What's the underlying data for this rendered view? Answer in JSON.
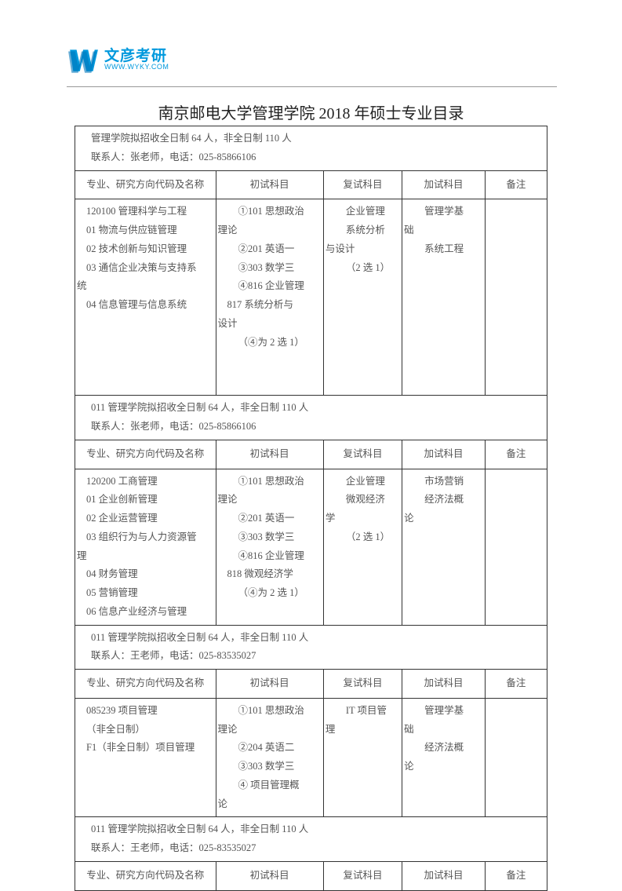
{
  "logo": {
    "cn": "文彦考研",
    "en": "WWW.WYKY.COM",
    "color": "#0099dd"
  },
  "title": "南京邮电大学管理学院 2018 年硕士专业目录",
  "headers": {
    "col1": "专业、研究方向代码及名称",
    "col2": "初试科目",
    "col3": "复试科目",
    "col4": "加试科目",
    "col5": "备注"
  },
  "sections": [
    {
      "banner_l1": "管理学院拟招收全日制 64 人，非全日制 110 人",
      "banner_l2": "联系人：张老师，电话：025-85866106",
      "col1_lines": [
        "120100 管理科学与工程",
        "01 物流与供应链管理",
        "02 技术创新与知识管理",
        "03 通信企业决策与支持系",
        "统",
        "04 信息管理与信息系统"
      ],
      "col2_lines": [
        "①101 思想政治",
        "理论",
        "②201 英语一",
        "③303 数学三",
        "④816 企业管理",
        "817 系统分析与",
        "设计",
        "（④为 2 选 1）"
      ],
      "col3_lines": [
        "企业管理",
        "系统分析",
        "与设计",
        "（2 选 1）"
      ],
      "col4_lines": [
        "管理学基",
        "础",
        "系统工程"
      ],
      "col1_indents": [
        1,
        1,
        1,
        1,
        0,
        1
      ],
      "col2_indents": [
        2,
        0,
        2,
        2,
        2,
        1,
        0,
        2
      ],
      "col3_indents": [
        2,
        2,
        0,
        2
      ],
      "col4_indents": [
        2,
        0,
        2
      ]
    },
    {
      "banner_l1": "011 管理学院拟招收全日制 64 人，非全日制 110 人",
      "banner_l2": "联系人：张老师，电话：025-85866106",
      "col1_lines": [
        "120200 工商管理",
        "01 企业创新管理",
        "02 企业运营管理",
        "03 组织行为与人力资源管",
        "理",
        "04 财务管理",
        "05 营销管理",
        "06 信息产业经济与管理"
      ],
      "col2_lines": [
        "①101 思想政治",
        "理论",
        "②201 英语一",
        "③303 数学三",
        "④816 企业管理",
        "818 微观经济学",
        "（④为 2 选 1）"
      ],
      "col3_lines": [
        "企业管理",
        "微观经济",
        "学",
        "（2 选 1）"
      ],
      "col4_lines": [
        "市场营销",
        "",
        "经济法概",
        "论"
      ],
      "col1_indents": [
        1,
        1,
        1,
        1,
        0,
        1,
        1,
        1
      ],
      "col2_indents": [
        2,
        0,
        2,
        2,
        2,
        1,
        2
      ],
      "col3_indents": [
        2,
        2,
        0,
        2
      ],
      "col4_indents": [
        2,
        0,
        2,
        0
      ]
    },
    {
      "banner_l1": "011 管理学院拟招收全日制 64 人，非全日制 110 人",
      "banner_l2": "联系人：王老师，电话：025-83535027",
      "col1_lines": [
        "085239 项目管理",
        "（非全日制）",
        "F1（非全日制）项目管理"
      ],
      "col2_lines": [
        "①101 思想政治",
        "理论",
        "②204 英语二",
        "③303 数学三",
        "④ 项目管理概",
        "论"
      ],
      "col3_lines": [
        "IT 项目管",
        "理"
      ],
      "col4_lines": [
        "管理学基",
        "础",
        "经济法概",
        "论"
      ],
      "col1_indents": [
        1,
        1,
        1
      ],
      "col2_indents": [
        2,
        0,
        2,
        2,
        2,
        0
      ],
      "col3_indents": [
        2,
        0
      ],
      "col4_indents": [
        2,
        0,
        2,
        0
      ]
    },
    {
      "banner_l1": "011 管理学院拟招收全日制 64 人，非全日制 110 人",
      "banner_l2": "联系人：王老师，电话：025-83535027"
    }
  ]
}
